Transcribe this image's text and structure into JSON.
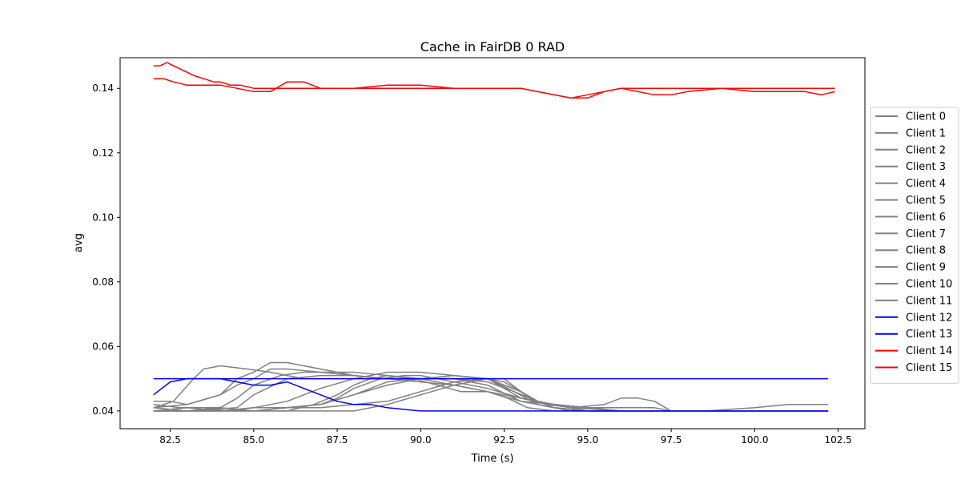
{
  "chart_data": {
    "type": "line",
    "title": "Cache in  FairDB 0 RAD",
    "xlabel": "Time (s)",
    "ylabel": "avg",
    "xlim": [
      81.0,
      103.3
    ],
    "ylim": [
      0.0345,
      0.1495
    ],
    "xticks": [
      82.5,
      85.0,
      87.5,
      90.0,
      92.5,
      95.0,
      97.5,
      100.0,
      102.5
    ],
    "xtick_labels": [
      "82.5",
      "85.0",
      "87.5",
      "90.0",
      "92.5",
      "95.0",
      "97.5",
      "100.0",
      "102.5"
    ],
    "yticks": [
      0.04,
      0.06,
      0.08,
      0.1,
      0.12,
      0.14
    ],
    "ytick_labels": [
      "0.04",
      "0.06",
      "0.08",
      "0.10",
      "0.12",
      "0.14"
    ],
    "grid": false,
    "legend_position": "right, outside plot",
    "colors": {
      "gray": "#808080",
      "blue": "#0000ff",
      "red": "#ff0000"
    },
    "series": [
      {
        "name": "Client 0",
        "color": "#808080",
        "x": [
          82.0,
          83.0,
          84.5,
          85.0,
          86.0,
          87.0,
          88.0,
          89.0,
          90.5,
          92.0,
          92.8,
          93.5,
          94.5,
          96.0,
          97.0,
          99.0,
          101.0,
          102.2
        ],
        "y": [
          0.04,
          0.04,
          0.041,
          0.045,
          0.05,
          0.051,
          0.051,
          0.05,
          0.05,
          0.05,
          0.046,
          0.042,
          0.04,
          0.04,
          0.04,
          0.04,
          0.04,
          0.04
        ]
      },
      {
        "name": "Client 1",
        "color": "#808080",
        "x": [
          82.0,
          82.8,
          83.5,
          84.2,
          85.0,
          86.0,
          87.0,
          88.0,
          89.0,
          90.0,
          91.0,
          92.0,
          93.0,
          94.0,
          95.0,
          97.0,
          100.0,
          102.2
        ],
        "y": [
          0.042,
          0.041,
          0.041,
          0.04,
          0.041,
          0.041,
          0.042,
          0.045,
          0.049,
          0.05,
          0.05,
          0.048,
          0.043,
          0.041,
          0.04,
          0.04,
          0.04,
          0.04
        ]
      },
      {
        "name": "Client 2",
        "color": "#808080",
        "x": [
          82.0,
          82.5,
          83.0,
          84.0,
          84.5,
          85.0,
          85.5,
          86.0,
          87.0,
          88.0,
          89.0,
          90.0,
          91.0,
          92.0,
          92.6,
          93.2,
          94.0,
          95.5,
          97.0,
          100.0,
          102.2
        ],
        "y": [
          0.043,
          0.043,
          0.042,
          0.045,
          0.048,
          0.05,
          0.053,
          0.053,
          0.052,
          0.052,
          0.051,
          0.05,
          0.048,
          0.046,
          0.044,
          0.041,
          0.04,
          0.04,
          0.04,
          0.04,
          0.04
        ]
      },
      {
        "name": "Client 3",
        "color": "#808080",
        "x": [
          82.0,
          82.6,
          83.2,
          83.5,
          84.0,
          84.8,
          85.5,
          86.0,
          86.5,
          87.0,
          88.0,
          88.5,
          89.0,
          90.5,
          92.0,
          93.0,
          93.5,
          94.0,
          95.0,
          97.0,
          99.0,
          102.2
        ],
        "y": [
          0.041,
          0.043,
          0.05,
          0.053,
          0.054,
          0.053,
          0.052,
          0.051,
          0.05,
          0.05,
          0.05,
          0.05,
          0.05,
          0.05,
          0.05,
          0.046,
          0.042,
          0.041,
          0.04,
          0.04,
          0.04,
          0.04
        ]
      },
      {
        "name": "Client 4",
        "color": "#808080",
        "x": [
          82.0,
          83.0,
          84.0,
          84.5,
          85.0,
          85.8,
          86.5,
          87.0,
          88.0,
          89.0,
          90.0,
          91.0,
          92.0,
          92.8,
          93.5,
          94.5,
          96.0,
          97.0,
          99.0,
          102.2
        ],
        "y": [
          0.04,
          0.04,
          0.041,
          0.044,
          0.048,
          0.051,
          0.052,
          0.052,
          0.051,
          0.05,
          0.05,
          0.05,
          0.049,
          0.046,
          0.043,
          0.041,
          0.04,
          0.04,
          0.04,
          0.04
        ]
      },
      {
        "name": "Client 5",
        "color": "#808080",
        "x": [
          82.0,
          83.0,
          84.0,
          85.0,
          86.0,
          86.8,
          87.5,
          88.0,
          88.5,
          89.0,
          89.8,
          90.5,
          91.2,
          92.0,
          93.0,
          94.0,
          95.0,
          97.0,
          99.0,
          102.2
        ],
        "y": [
          0.041,
          0.04,
          0.04,
          0.04,
          0.04,
          0.042,
          0.045,
          0.048,
          0.05,
          0.051,
          0.05,
          0.048,
          0.046,
          0.046,
          0.044,
          0.042,
          0.04,
          0.04,
          0.04,
          0.04
        ]
      },
      {
        "name": "Client 6",
        "color": "#808080",
        "x": [
          82.0,
          83.0,
          84.0,
          85.0,
          86.0,
          87.0,
          87.5,
          88.0,
          88.8,
          89.5,
          90.0,
          91.0,
          92.0,
          93.0,
          93.8,
          94.5,
          95.5,
          96.0,
          96.5,
          97.0,
          97.5,
          98.5,
          102.2
        ],
        "y": [
          0.04,
          0.04,
          0.04,
          0.04,
          0.041,
          0.042,
          0.044,
          0.047,
          0.05,
          0.051,
          0.051,
          0.049,
          0.047,
          0.044,
          0.042,
          0.041,
          0.042,
          0.044,
          0.044,
          0.043,
          0.04,
          0.04,
          0.04
        ]
      },
      {
        "name": "Client 7",
        "color": "#808080",
        "x": [
          82.0,
          83.0,
          84.0,
          85.0,
          86.0,
          87.0,
          88.0,
          89.0,
          90.0,
          91.0,
          92.0,
          92.5,
          93.0,
          93.5,
          94.0,
          95.0,
          96.0,
          97.0,
          97.5,
          98.5,
          100.0,
          101.0,
          102.2
        ],
        "y": [
          0.04,
          0.04,
          0.04,
          0.04,
          0.04,
          0.04,
          0.04,
          0.042,
          0.045,
          0.048,
          0.05,
          0.05,
          0.046,
          0.043,
          0.042,
          0.041,
          0.041,
          0.041,
          0.04,
          0.04,
          0.041,
          0.042,
          0.042
        ]
      },
      {
        "name": "Client 8",
        "color": "#808080",
        "x": [
          82.0,
          83.0,
          84.0,
          84.5,
          85.0,
          85.5,
          86.0,
          87.0,
          88.0,
          89.0,
          90.0,
          91.0,
          92.0,
          93.0,
          94.0,
          95.0,
          96.0,
          97.0,
          98.0,
          100.0,
          102.2
        ],
        "y": [
          0.041,
          0.042,
          0.045,
          0.05,
          0.052,
          0.055,
          0.055,
          0.053,
          0.051,
          0.05,
          0.049,
          0.048,
          0.046,
          0.043,
          0.042,
          0.041,
          0.04,
          0.04,
          0.04,
          0.04,
          0.04
        ]
      },
      {
        "name": "Client 9",
        "color": "#808080",
        "x": [
          82.0,
          83.0,
          84.0,
          85.0,
          86.0,
          87.0,
          88.0,
          89.0,
          90.0,
          91.0,
          92.0,
          92.5,
          93.0,
          93.5,
          94.0,
          95.0,
          96.0,
          97.0,
          99.0,
          102.2
        ],
        "y": [
          0.04,
          0.041,
          0.041,
          0.04,
          0.041,
          0.042,
          0.045,
          0.048,
          0.05,
          0.051,
          0.05,
          0.048,
          0.046,
          0.043,
          0.041,
          0.04,
          0.04,
          0.04,
          0.04,
          0.04
        ]
      },
      {
        "name": "Client 10",
        "color": "#808080",
        "x": [
          82.0,
          83.0,
          84.0,
          85.0,
          86.0,
          87.0,
          88.0,
          89.0,
          90.0,
          91.0,
          92.0,
          92.5,
          93.0,
          94.0,
          95.0,
          96.0,
          97.0,
          99.0,
          102.2
        ],
        "y": [
          0.04,
          0.041,
          0.04,
          0.041,
          0.043,
          0.047,
          0.05,
          0.052,
          0.052,
          0.051,
          0.05,
          0.047,
          0.044,
          0.042,
          0.041,
          0.04,
          0.04,
          0.04,
          0.04
        ]
      },
      {
        "name": "Client 11",
        "color": "#808080",
        "x": [
          82.0,
          83.0,
          84.0,
          85.0,
          86.0,
          87.0,
          88.0,
          89.0,
          90.0,
          91.0,
          92.0,
          92.5,
          93.0,
          93.5,
          94.0,
          95.0,
          96.0,
          97.0,
          100.0,
          102.2
        ],
        "y": [
          0.04,
          0.04,
          0.04,
          0.041,
          0.041,
          0.041,
          0.042,
          0.043,
          0.046,
          0.049,
          0.05,
          0.049,
          0.046,
          0.043,
          0.041,
          0.04,
          0.04,
          0.04,
          0.04,
          0.04
        ]
      },
      {
        "name": "Client 12",
        "color": "#0000ff",
        "x": [
          82.0,
          82.5,
          83.0,
          83.5,
          84.0,
          84.5,
          85.0,
          85.5,
          86.0,
          86.5,
          87.0,
          87.5,
          88.0,
          88.5,
          89.0,
          90.0,
          91.0,
          92.0,
          93.0,
          95.0,
          97.0,
          100.0,
          102.2
        ],
        "y": [
          0.045,
          0.049,
          0.05,
          0.05,
          0.05,
          0.049,
          0.048,
          0.048,
          0.049,
          0.047,
          0.045,
          0.043,
          0.042,
          0.042,
          0.041,
          0.04,
          0.04,
          0.04,
          0.04,
          0.04,
          0.04,
          0.04,
          0.04
        ]
      },
      {
        "name": "Client 13",
        "color": "#0000ff",
        "x": [
          82.0,
          82.5,
          83.0,
          84.0,
          84.5,
          85.0,
          85.5,
          86.0,
          86.5,
          87.0,
          87.5,
          88.0,
          88.5,
          89.0,
          89.5,
          90.0,
          91.0,
          91.5,
          92.5,
          93.0,
          94.0,
          95.0,
          97.0,
          100.0,
          102.2
        ],
        "y": [
          0.05,
          0.05,
          0.05,
          0.05,
          0.05,
          0.05,
          0.05,
          0.05,
          0.05,
          0.05,
          0.05,
          0.05,
          0.05,
          0.05,
          0.05,
          0.05,
          0.05,
          0.05,
          0.05,
          0.05,
          0.05,
          0.05,
          0.05,
          0.05,
          0.05
        ]
      },
      {
        "name": "Client 14",
        "color": "#ff0000",
        "x": [
          82.0,
          82.2,
          82.4,
          82.6,
          82.8,
          83.0,
          83.2,
          83.5,
          83.8,
          84.0,
          84.3,
          84.6,
          85.0,
          85.5,
          86.0,
          87.0,
          88.0,
          89.0,
          90.0,
          91.0,
          92.0,
          93.0,
          93.5,
          94.0,
          94.5,
          95.0,
          95.5,
          96.0,
          97.0,
          98.0,
          99.0,
          100.0,
          101.0,
          101.5,
          102.0,
          102.4
        ],
        "y": [
          0.147,
          0.147,
          0.148,
          0.147,
          0.146,
          0.145,
          0.144,
          0.143,
          0.142,
          0.142,
          0.141,
          0.141,
          0.14,
          0.14,
          0.14,
          0.14,
          0.14,
          0.14,
          0.14,
          0.14,
          0.14,
          0.14,
          0.139,
          0.138,
          0.137,
          0.137,
          0.139,
          0.14,
          0.14,
          0.14,
          0.14,
          0.14,
          0.14,
          0.14,
          0.14,
          0.14
        ]
      },
      {
        "name": "Client 15",
        "color": "#ff0000",
        "x": [
          82.0,
          82.3,
          82.6,
          83.0,
          83.3,
          83.6,
          84.0,
          84.5,
          85.0,
          85.5,
          86.0,
          86.5,
          87.0,
          88.0,
          89.0,
          90.0,
          91.0,
          92.0,
          93.0,
          93.5,
          94.0,
          94.5,
          95.0,
          95.5,
          96.0,
          96.5,
          97.0,
          97.5,
          98.0,
          99.0,
          100.0,
          101.0,
          101.5,
          102.0,
          102.4
        ],
        "y": [
          0.143,
          0.143,
          0.142,
          0.141,
          0.141,
          0.141,
          0.141,
          0.14,
          0.139,
          0.139,
          0.142,
          0.142,
          0.14,
          0.14,
          0.141,
          0.141,
          0.14,
          0.14,
          0.14,
          0.139,
          0.138,
          0.137,
          0.138,
          0.139,
          0.14,
          0.139,
          0.138,
          0.138,
          0.139,
          0.14,
          0.139,
          0.139,
          0.139,
          0.138,
          0.139
        ]
      }
    ]
  }
}
